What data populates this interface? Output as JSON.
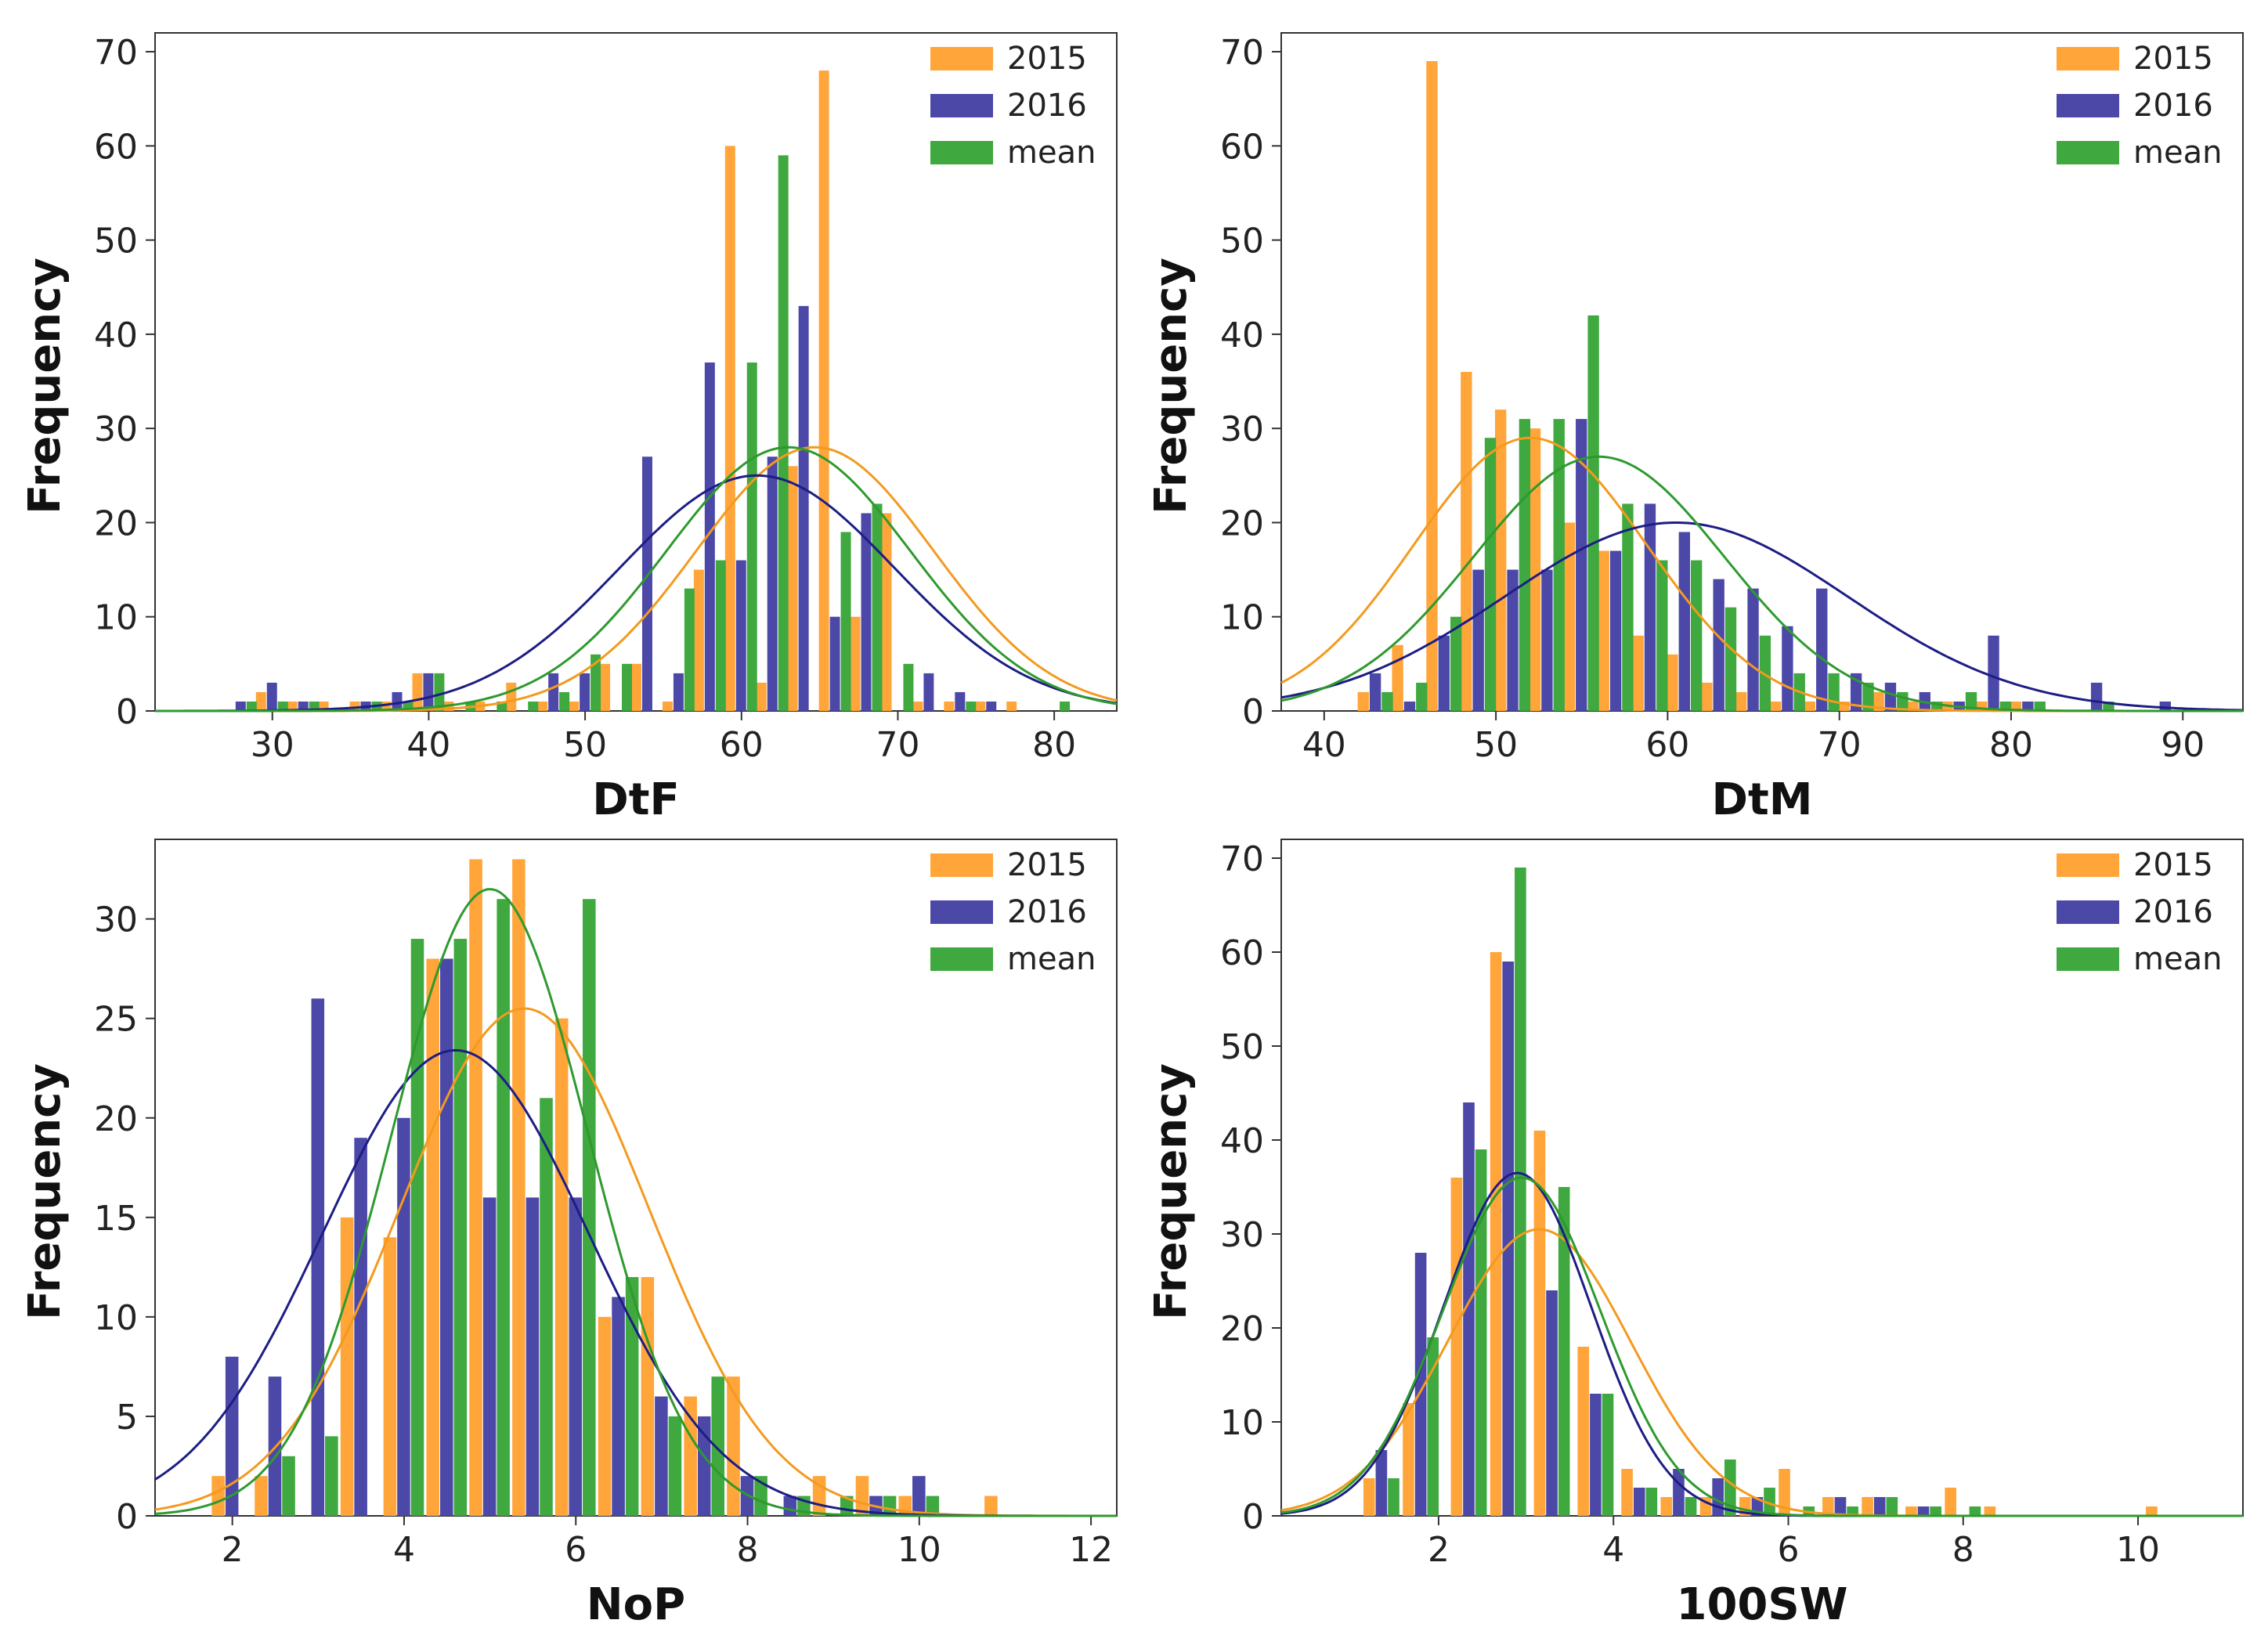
{
  "colors": {
    "2015": "#FFA53A",
    "2016": "#4B48A8",
    "mean": "#3FA83F",
    "curve_2015": "#F39A1E",
    "curve_2016": "#1D1D85",
    "curve_mean": "#2E9A2E"
  },
  "chart_data": [
    {
      "type": "bar",
      "xlabel": "DtF",
      "ylabel": "Frequency",
      "xlim": [
        22.5,
        84
      ],
      "ylim": [
        0,
        72
      ],
      "xticks": [
        30,
        40,
        50,
        60,
        70,
        80
      ],
      "yticks": [
        0,
        10,
        20,
        30,
        40,
        50,
        60,
        70
      ],
      "binwidth": 2.1,
      "legend": {
        "position": "top-right",
        "entries": [
          "2015",
          "2016",
          "mean"
        ]
      },
      "x": [
        28,
        30,
        32,
        34,
        36,
        38,
        40,
        42,
        44,
        46,
        48,
        50,
        52,
        54,
        56,
        58,
        60,
        62,
        64,
        66,
        68,
        70,
        72,
        74,
        76,
        78,
        80
      ],
      "series": [
        {
          "name": "2015",
          "values": [
            0,
            2,
            1,
            1,
            1,
            1,
            4,
            1,
            1,
            3,
            1,
            1,
            5,
            5,
            1,
            15,
            60,
            3,
            26,
            68,
            10,
            21,
            1,
            1,
            1,
            1,
            0
          ]
        },
        {
          "name": "2016",
          "values": [
            1,
            3,
            1,
            0,
            1,
            2,
            4,
            0,
            0,
            0,
            4,
            4,
            0,
            27,
            4,
            37,
            16,
            27,
            43,
            10,
            21,
            0,
            4,
            2,
            1,
            0,
            0
          ]
        },
        {
          "name": "mean",
          "values": [
            1,
            1,
            1,
            0,
            1,
            1,
            4,
            1,
            1,
            1,
            2,
            6,
            5,
            0,
            13,
            16,
            37,
            59,
            0,
            19,
            22,
            5,
            0,
            1,
            0,
            0,
            1
          ]
        }
      ],
      "curves": [
        {
          "name": "2015",
          "peak": 28,
          "mean": 64.7,
          "sd": 7.6
        },
        {
          "name": "2016",
          "peak": 25,
          "mean": 61.0,
          "sd": 8.8
        },
        {
          "name": "mean",
          "peak": 28,
          "mean": 63.0,
          "sd": 7.8
        }
      ]
    },
    {
      "type": "bar",
      "xlabel": "DtM",
      "ylabel": "Frequency",
      "xlim": [
        37.5,
        93.5
      ],
      "ylim": [
        0,
        72
      ],
      "xticks": [
        40,
        50,
        60,
        70,
        80,
        90
      ],
      "yticks": [
        0,
        10,
        20,
        30,
        40,
        50,
        60,
        70
      ],
      "binwidth": 2.1,
      "legend": {
        "position": "top-right",
        "entries": [
          "2015",
          "2016",
          "mean"
        ]
      },
      "x": [
        43,
        45,
        47,
        49,
        51,
        53,
        55,
        57,
        59,
        61,
        63,
        65,
        67,
        69,
        71,
        73,
        75,
        77,
        79,
        81,
        83,
        85,
        87,
        89
      ],
      "series": [
        {
          "name": "2015",
          "values": [
            2,
            7,
            69,
            36,
            32,
            30,
            20,
            17,
            8,
            6,
            3,
            2,
            1,
            1,
            1,
            2,
            1,
            1,
            1,
            1,
            0,
            0,
            0,
            0
          ]
        },
        {
          "name": "2016",
          "values": [
            4,
            1,
            8,
            15,
            15,
            15,
            31,
            17,
            22,
            19,
            14,
            13,
            9,
            13,
            4,
            3,
            2,
            1,
            8,
            1,
            0,
            3,
            0,
            1
          ]
        },
        {
          "name": "mean",
          "values": [
            2,
            3,
            10,
            29,
            31,
            31,
            42,
            22,
            16,
            16,
            11,
            8,
            4,
            4,
            3,
            2,
            1,
            2,
            1,
            1,
            0,
            1,
            0,
            0
          ]
        }
      ],
      "curves": [
        {
          "name": "2015",
          "peak": 29,
          "mean": 52.0,
          "sd": 6.8
        },
        {
          "name": "2016",
          "peak": 20,
          "mean": 60.5,
          "sd": 10.0
        },
        {
          "name": "mean",
          "peak": 27,
          "mean": 56.0,
          "sd": 7.3
        }
      ]
    },
    {
      "type": "bar",
      "xlabel": "NoP",
      "ylabel": "Frequency",
      "xlim": [
        1.1,
        12.3
      ],
      "ylim": [
        0,
        34
      ],
      "xticks": [
        2,
        4,
        6,
        8,
        10,
        12
      ],
      "yticks": [
        0,
        5,
        10,
        15,
        20,
        25,
        30
      ],
      "binwidth": 0.48,
      "legend": {
        "position": "top-right",
        "entries": [
          "2015",
          "2016",
          "mean"
        ]
      },
      "x": [
        2,
        2.5,
        3,
        3.5,
        4,
        4.5,
        5,
        5.5,
        6,
        6.5,
        7,
        7.5,
        8,
        8.5,
        9,
        9.5,
        10,
        10.5,
        11
      ],
      "series": [
        {
          "name": "2015",
          "values": [
            2,
            2,
            0,
            15,
            14,
            28,
            33,
            33,
            25,
            10,
            12,
            6,
            7,
            0,
            2,
            2,
            1,
            0,
            1
          ]
        },
        {
          "name": "2016",
          "values": [
            8,
            7,
            26,
            19,
            20,
            28,
            16,
            16,
            16,
            11,
            6,
            5,
            2,
            1,
            0,
            1,
            2,
            0,
            0
          ]
        },
        {
          "name": "mean",
          "values": [
            0,
            3,
            4,
            0,
            29,
            29,
            31,
            21,
            31,
            12,
            5,
            7,
            2,
            1,
            1,
            1,
            1,
            0,
            0
          ]
        }
      ],
      "curves": [
        {
          "name": "2015",
          "peak": 25.5,
          "mean": 5.4,
          "sd": 1.45
        },
        {
          "name": "2016",
          "peak": 23.4,
          "mean": 4.6,
          "sd": 1.55
        },
        {
          "name": "mean",
          "peak": 31.5,
          "mean": 5.0,
          "sd": 1.15
        }
      ]
    },
    {
      "type": "bar",
      "xlabel": "100SW",
      "ylabel": "Frequency",
      "xlim": [
        0.2,
        11.2
      ],
      "ylim": [
        0,
        72
      ],
      "xticks": [
        2,
        4,
        6,
        8,
        10
      ],
      "yticks": [
        0,
        10,
        20,
        30,
        40,
        50,
        60,
        70
      ],
      "binwidth": 0.42,
      "legend": {
        "position": "top-right",
        "entries": [
          "2015",
          "2016",
          "mean"
        ]
      },
      "x": [
        1.35,
        1.8,
        2.35,
        2.8,
        3.3,
        3.8,
        4.3,
        4.75,
        5.2,
        5.65,
        6.1,
        6.6,
        7.05,
        7.55,
        8.0,
        8.45,
        8.9,
        9.35,
        9.8,
        10.3
      ],
      "series": [
        {
          "name": "2015",
          "values": [
            4,
            12,
            36,
            60,
            41,
            18,
            5,
            2,
            2,
            2,
            5,
            2,
            2,
            1,
            3,
            1,
            0,
            0,
            0,
            1
          ]
        },
        {
          "name": "2016",
          "values": [
            7,
            28,
            44,
            59,
            24,
            13,
            3,
            5,
            4,
            2,
            0,
            2,
            2,
            1,
            0,
            0,
            0,
            0,
            0,
            0
          ]
        },
        {
          "name": "mean",
          "values": [
            4,
            19,
            39,
            69,
            35,
            13,
            3,
            2,
            6,
            3,
            1,
            1,
            2,
            1,
            1,
            0,
            0,
            0,
            0,
            0
          ]
        }
      ],
      "curves": [
        {
          "name": "2015",
          "peak": 30.5,
          "mean": 3.15,
          "sd": 1.05
        },
        {
          "name": "2016",
          "peak": 36.5,
          "mean": 2.9,
          "sd": 0.85
        },
        {
          "name": "mean",
          "peak": 36.0,
          "mean": 2.95,
          "sd": 0.9
        }
      ]
    }
  ]
}
